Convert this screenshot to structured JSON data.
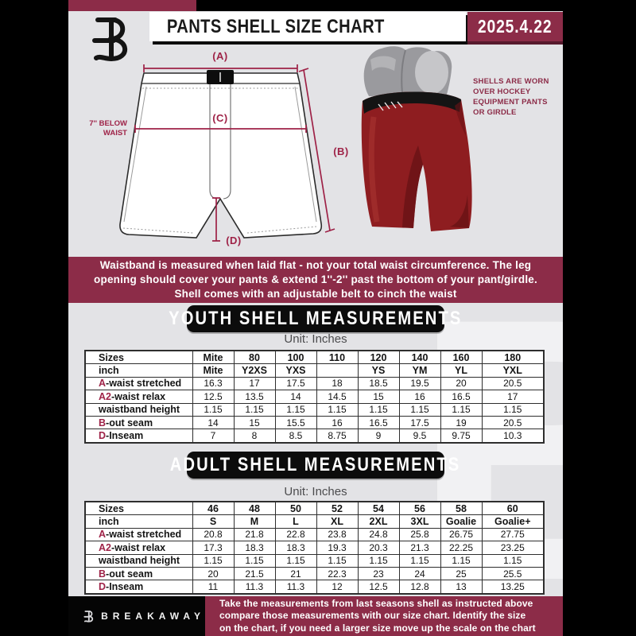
{
  "header": {
    "title": "PANTS SHELL SIZE CHART",
    "date": "2025.4.22"
  },
  "diagram": {
    "label_a": "(A)",
    "label_b": "(B)",
    "label_c": "(C)",
    "label_d": "(D)",
    "below_waist_line1": "7'' BELOW",
    "below_waist_line2": "WAIST",
    "photo_note_lines": [
      "SHELLS ARE WORN",
      "OVER HOCKEY",
      "EQUIPMENT PANTS",
      "OR GIRDLE"
    ]
  },
  "note_banner": {
    "lines": [
      "Waistband is measured when laid flat - not your total waist circumference. The leg",
      "opening should cover your pants & extend 1''-2'' past the bottom of your pant/girdle.",
      "Shell comes with an adjustable belt to cinch the waist"
    ]
  },
  "youth": {
    "title": "YOUTH SHELL MEASUREMENTS",
    "unit": "Unit: Inches",
    "table": {
      "rows": [
        {
          "prefix": "",
          "label": "Sizes",
          "header": true,
          "values": [
            "Mite",
            "80",
            "100",
            "110",
            "120",
            "140",
            "160",
            "180"
          ]
        },
        {
          "prefix": "",
          "label": "inch",
          "header": true,
          "values": [
            "Mite",
            "Y2XS",
            "YXS",
            "",
            "YS",
            "YM",
            "YL",
            "YXL"
          ]
        },
        {
          "prefix": "A",
          "label": "-waist stretched",
          "header": false,
          "values": [
            "16.3",
            "17",
            "17.5",
            "18",
            "18.5",
            "19.5",
            "20",
            "20.5"
          ]
        },
        {
          "prefix": "A2",
          "label": "-waist relax",
          "header": false,
          "values": [
            "12.5",
            "13.5",
            "14",
            "14.5",
            "15",
            "16",
            "16.5",
            "17"
          ]
        },
        {
          "prefix": "",
          "label": "waistband height",
          "header": false,
          "values": [
            "1.15",
            "1.15",
            "1.15",
            "1.15",
            "1.15",
            "1.15",
            "1.15",
            "1.15"
          ]
        },
        {
          "prefix": "B",
          "label": "-out seam",
          "header": false,
          "values": [
            "14",
            "15",
            "15.5",
            "16",
            "16.5",
            "17.5",
            "19",
            "20.5"
          ]
        },
        {
          "prefix": "D",
          "label": "-Inseam",
          "header": false,
          "values": [
            "7",
            "8",
            "8.5",
            "8.75",
            "9",
            "9.5",
            "9.75",
            "10.3"
          ]
        }
      ]
    }
  },
  "adult": {
    "title": "ADULT SHELL MEASUREMENTS",
    "unit": "Unit: Inches",
    "table": {
      "rows": [
        {
          "prefix": "",
          "label": "Sizes",
          "header": true,
          "values": [
            "46",
            "48",
            "50",
            "52",
            "54",
            "56",
            "58",
            "60"
          ]
        },
        {
          "prefix": "",
          "label": "inch",
          "header": true,
          "values": [
            "S",
            "M",
            "L",
            "XL",
            "2XL",
            "3XL",
            "Goalie",
            "Goalie+"
          ]
        },
        {
          "prefix": "A",
          "label": "-waist stretched",
          "header": false,
          "values": [
            "20.8",
            "21.8",
            "22.8",
            "23.8",
            "24.8",
            "25.8",
            "26.75",
            "27.75"
          ]
        },
        {
          "prefix": "A2",
          "label": "-waist relax",
          "header": false,
          "values": [
            "17.3",
            "18.3",
            "18.3",
            "19.3",
            "20.3",
            "21.3",
            "22.25",
            "23.25"
          ]
        },
        {
          "prefix": "",
          "label": "waistband height",
          "header": false,
          "values": [
            "1.15",
            "1.15",
            "1.15",
            "1.15",
            "1.15",
            "1.15",
            "1.15",
            "1.15"
          ]
        },
        {
          "prefix": "B",
          "label": "-out seam",
          "header": false,
          "values": [
            "20",
            "21.5",
            "21",
            "22.3",
            "23",
            "24",
            "25",
            "25.5"
          ]
        },
        {
          "prefix": "D",
          "label": "-Inseam",
          "header": false,
          "values": [
            "11",
            "11.3",
            "11.3",
            "12",
            "12.5",
            "12.8",
            "13",
            "13.25"
          ]
        }
      ]
    }
  },
  "footer": {
    "brand": "BREAKAWAY",
    "lines": [
      "Take the measurements from last seasons shell as instructed above",
      "compare those measurements  with our size chart. Identify the size",
      "on the chart, if you need a larger size move up the scale on the chart"
    ]
  },
  "watermark_letter": "B",
  "colors": {
    "maroon": "#8c2c48",
    "measure_line": "#9e2247",
    "page_bg": "#e3e3e6",
    "black": "#0a0a0a",
    "table_border": "#2e2e2e",
    "shell_red": "#8e1d20"
  }
}
